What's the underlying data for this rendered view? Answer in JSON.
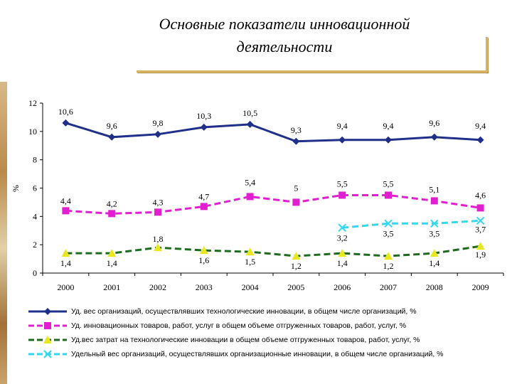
{
  "title_line1": "Основные показатели инновационной",
  "title_line2": "деятельности",
  "chart_data": {
    "type": "line",
    "title": "Основные показатели инновационной деятельности",
    "ylabel": "%",
    "xlabel": "",
    "ylim": [
      0,
      12
    ],
    "yticks": [
      0,
      2,
      4,
      6,
      8,
      10,
      12
    ],
    "categories": [
      "2000",
      "2001",
      "2002",
      "2003",
      "2004",
      "2005",
      "2006",
      "2007",
      "2008",
      "2009"
    ],
    "grid": false,
    "legend_position": "bottom",
    "series": [
      {
        "name": "Уд. вес организаций, осуществлявших технологические инновации, в общем числе организаций, %",
        "color": "#1f2f8a",
        "marker": "diamond",
        "dash": "solid",
        "values": [
          10.6,
          9.6,
          9.8,
          10.3,
          10.5,
          9.3,
          9.4,
          9.4,
          9.6,
          9.4
        ],
        "labels": [
          "10,6",
          "9,6",
          "9,8",
          "10,3",
          "10,5",
          "9,3",
          "9,4",
          "9,4",
          "9,6",
          "9,4"
        ]
      },
      {
        "name": "Уд. инновационных товаров, работ, услуг в общем объеме отгруженных товаров, работ, услуг, %",
        "color": "#e020d0",
        "marker": "square",
        "dash": "dashed",
        "values": [
          4.4,
          4.2,
          4.3,
          4.7,
          5.4,
          5.0,
          5.5,
          5.5,
          5.1,
          4.6
        ],
        "labels": [
          "4,4",
          "4,2",
          "4,3",
          "4,7",
          "5,4",
          "5",
          "5,5",
          "5,5",
          "5,1",
          "4,6"
        ]
      },
      {
        "name": "Уд.вес затрат на технологические инновации в общем объеме отгруженных товаров, работ, услуг, %",
        "color": "#1e6a1e",
        "marker_color": "#e8e820",
        "marker": "triangle",
        "dash": "dashed",
        "values": [
          1.4,
          1.4,
          1.8,
          1.6,
          1.5,
          1.2,
          1.4,
          1.2,
          1.4,
          1.9
        ],
        "labels": [
          "1,4",
          "1,4",
          "1,8",
          "1,6",
          "1,5",
          "1,2",
          "1,4",
          "1,2",
          "1,4",
          "1,9"
        ]
      },
      {
        "name": "Удельный вес организаций, осуществлявших организационные инновации, в общем числе организаций, %",
        "color": "#30d8f0",
        "marker": "x",
        "dash": "dashed",
        "values": [
          null,
          null,
          null,
          null,
          null,
          null,
          3.2,
          3.5,
          3.5,
          3.7
        ],
        "labels": [
          "",
          "",
          "",
          "",
          "",
          "",
          "3,2",
          "3,5",
          "3,5",
          "3,7"
        ]
      }
    ]
  }
}
